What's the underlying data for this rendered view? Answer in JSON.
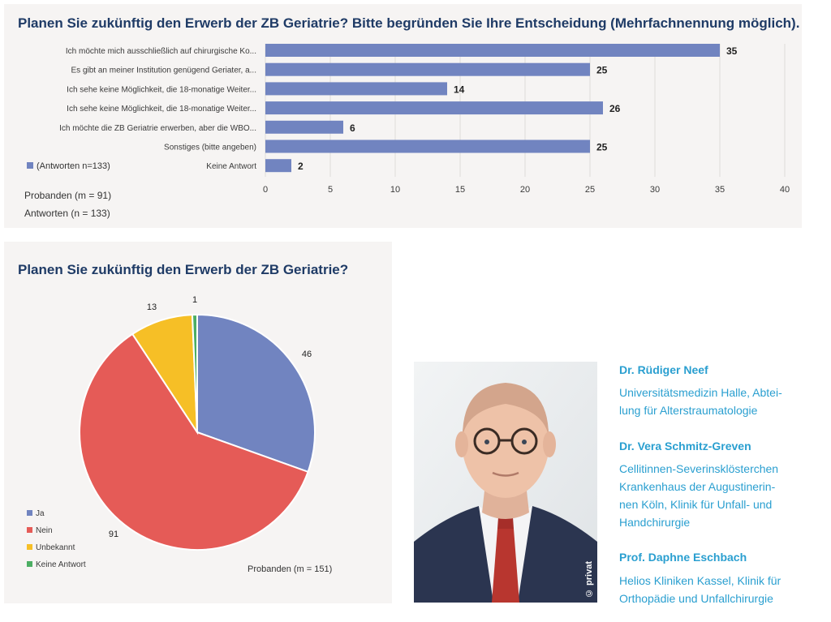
{
  "bar_panel": {
    "title": "Planen Sie zukünftig den Erwerb der ZB Geriatrie? Bitte begründen Sie Ihre Entscheidung (Mehrfachnennung möglich).",
    "legend_label": "(Antworten n=133)",
    "note_probanden": "Probanden (m = 91)",
    "note_antworten": "Antworten (n = 133)"
  },
  "pie_panel": {
    "title": "Planen Sie zukünftig den Erwerb der ZB Geriatrie?",
    "note": "Probanden (m = 151)"
  },
  "photo_credit": "© privat",
  "authors": [
    {
      "name": "Dr. Rüdiger Neef",
      "affiliation_lines": [
        "Universitätsmedizin Halle, Abtei-",
        "lung für Alterstraumatologie"
      ]
    },
    {
      "name": "Dr. Vera Schmitz-Greven",
      "affiliation_lines": [
        "Cellitinnen-Severinsklösterchen",
        "Krankenhaus der Augustinerin-",
        "nen Köln, Klinik für Unfall- und",
        "Handchirurgie"
      ]
    },
    {
      "name": "Prof. Daphne Eschbach",
      "affiliation_lines": [
        "Helios Kliniken Kassel, Klinik für",
        "Orthopädie und Unfallchirurgie"
      ]
    }
  ],
  "chart_data": [
    {
      "type": "bar",
      "orientation": "horizontal",
      "title": "Planen Sie zukünftig den Erwerb der ZB Geriatrie? Bitte begründen Sie Ihre Entscheidung (Mehrfachnennung möglich).",
      "categories": [
        "Ich möchte mich ausschließlich auf chirurgische Ko...",
        "Es gibt an meiner Institution genügend Geriater, a...",
        "Ich sehe keine Möglichkeit, die 18-monatige Weiter...",
        "Ich sehe keine Möglichkeit, die 18-monatige Weiter...",
        "Ich möchte die ZB Geriatrie erwerben, aber die WBO...",
        "Sonstiges (bitte angeben)",
        "Keine Antwort"
      ],
      "series": [
        {
          "name": "(Antworten n=133)",
          "values": [
            35,
            25,
            14,
            26,
            6,
            25,
            2
          ]
        }
      ],
      "xticks": [
        0,
        5,
        10,
        15,
        20,
        25,
        30,
        35,
        40
      ],
      "xlim": [
        0,
        40
      ],
      "grid": true,
      "bar_color": "#7184c0"
    },
    {
      "type": "pie",
      "title": "Planen Sie zukünftig den Erwerb der ZB Geriatrie?",
      "labels": [
        "Ja",
        "Nein",
        "Unbekannt",
        "Keine Antwort"
      ],
      "values": [
        46,
        91,
        13,
        1
      ],
      "colors": [
        "#7184c0",
        "#e55b57",
        "#f6bf26",
        "#4cae63"
      ],
      "legend_position": "bottom-left"
    }
  ]
}
